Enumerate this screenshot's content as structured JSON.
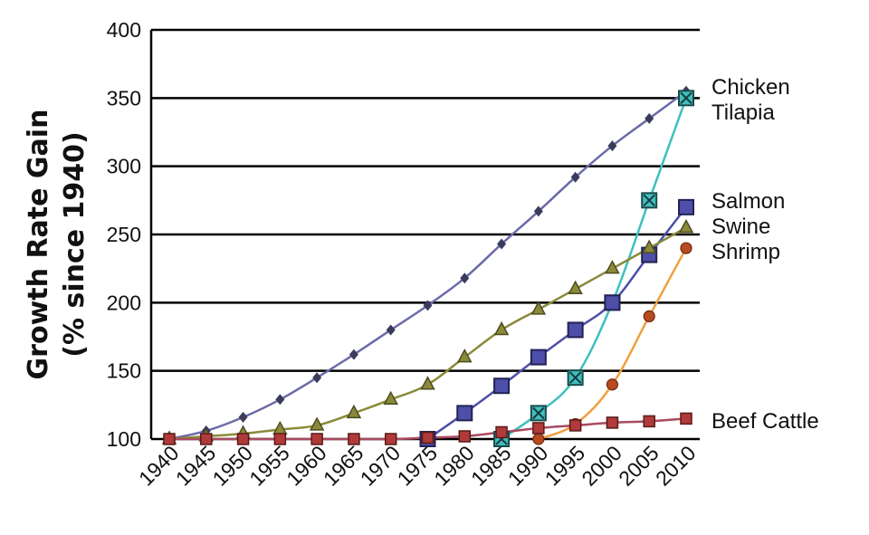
{
  "chart_data": {
    "type": "line",
    "ylabel_line1": "Growth Rate Gain",
    "ylabel_line2": "(% since 1940)",
    "xlabel": "",
    "title": "",
    "ylim": [
      100,
      400
    ],
    "yticks": [
      "100",
      "150",
      "200",
      "250",
      "300",
      "350",
      "400"
    ],
    "grid": "horizontal",
    "categories": [
      "1940",
      "1945",
      "1950",
      "1955",
      "1960",
      "1965",
      "1970",
      "1975",
      "1980",
      "1985",
      "1990",
      "1995",
      "2000",
      "2005",
      "2010"
    ],
    "series": [
      {
        "name": "Chicken",
        "color": "#6b6ba8",
        "marker": "diamond",
        "x": [
          1940,
          1945,
          1950,
          1955,
          1960,
          1965,
          1970,
          1975,
          1980,
          1985,
          1990,
          1995,
          2000,
          2005,
          2010
        ],
        "values": [
          100,
          106,
          116,
          129,
          145,
          162,
          180,
          198,
          218,
          243,
          267,
          292,
          315,
          335,
          355
        ]
      },
      {
        "name": "Tilapia",
        "color": "#3fbfbf",
        "marker": "x-square",
        "x": [
          1985,
          1990,
          1995,
          2000,
          2005,
          2010
        ],
        "values": [
          100,
          119,
          145,
          200,
          275,
          350
        ]
      },
      {
        "name": "Salmon",
        "color": "#4d4fa8",
        "marker": "square",
        "x": [
          1975,
          1980,
          1985,
          1990,
          1995,
          2000,
          2005,
          2010
        ],
        "values": [
          100,
          119,
          139,
          160,
          180,
          200,
          235,
          270
        ]
      },
      {
        "name": "Swine",
        "color": "#8a8a3a",
        "marker": "triangle",
        "x": [
          1940,
          1945,
          1950,
          1955,
          1960,
          1965,
          1970,
          1975,
          1980,
          1985,
          1990,
          1995,
          2000,
          2005,
          2010
        ],
        "values": [
          100,
          102,
          104,
          107,
          110,
          119,
          129,
          140,
          160,
          180,
          195,
          210,
          225,
          240,
          255
        ]
      },
      {
        "name": "Shrimp",
        "color": "#f0a040",
        "marker": "circle",
        "x": [
          1990,
          1995,
          2000,
          2005,
          2010
        ],
        "values": [
          100,
          111,
          140,
          190,
          240
        ]
      },
      {
        "name": "Beef Cattle",
        "color": "#a94a60",
        "marker": "square-small",
        "x": [
          1940,
          1945,
          1950,
          1955,
          1960,
          1965,
          1970,
          1975,
          1980,
          1985,
          1990,
          1995,
          2000,
          2005,
          2010
        ],
        "values": [
          100,
          100,
          100,
          100,
          100,
          100,
          100,
          101,
          102,
          105,
          108,
          110,
          112,
          113,
          115
        ]
      }
    ]
  }
}
